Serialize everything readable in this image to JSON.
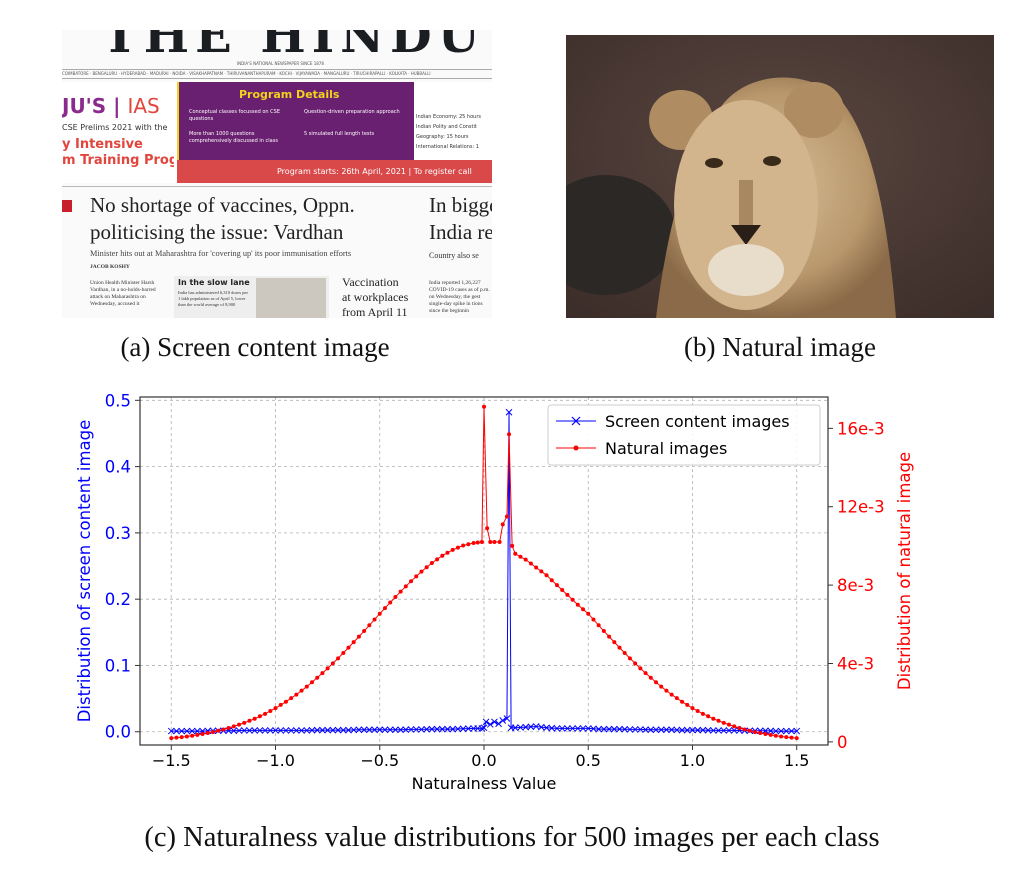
{
  "panel_a": {
    "caption": "(a) Screen content image",
    "masthead": "THE HINDU",
    "masthead_tag": "INDIA'S NATIONAL NEWSPAPER SINCE 1878",
    "cities": "COIMBATORE · BENGALURU · HYDERABAD · MADURAI · NOIDA · VISAKHAPATNAM · THIRUVANANTHAPURAM · KOCHI · VIJAYAWADA · MANGALURU · TIRUCHIRAPALLI · KOLKATA · HUBBALLI",
    "ad_brand": "JU'S",
    "ad_brand_ias": "IAS",
    "ad_sub": "CSE Prelims 2021 with the",
    "ad_intensive": "y Intensive",
    "ad_program": "m Training Program",
    "ad_title": "Program Details",
    "ad_bullets": [
      "Conceptual classes focussed on CSE questions",
      "Question-driven preparation approach",
      "More than 1000 questions comprehensively discussed in class",
      "5 simulated full length tests"
    ],
    "ad_right": [
      "Indian Economy: 25 hours",
      "Indian Polity and Constit",
      "Geography: 15 hours",
      "International Relations: 1"
    ],
    "ad_footer": "Program starts: 26th April, 2021  |  To register call",
    "headline_1": "No shortage of vaccines, Oppn.",
    "headline_2": "politicising the issue: Vardhan",
    "deck": "Minister hits out at Maharashtra for 'covering up' its poor immunisation efforts",
    "byline": "JACOB KOSHY",
    "body": "Union Health Minister Harsh Vardhan, in a no-holds-barred attack on Maharashtra on Wednesday, accused it",
    "slow_lane_title": "In the slow lane",
    "slow_lane_body": "India has administered 6,310 doses per 1 lakh population as of April 5, lower than the world average of 8,900",
    "vaccination_1": "Vaccination",
    "vaccination_2": "at workplaces",
    "vaccination_3": "from April 11",
    "side_head_1": "In bigge",
    "side_head_2": "India re",
    "side_deck": "Country also se",
    "side_body": "India reported 1,26,227 COVID-19 cases as of p.m. on Wednesday, the gest single-day spike in tions since the beginnin"
  },
  "panel_b": {
    "caption": "(b) Natural image"
  },
  "panel_c": {
    "caption": "(c) Naturalness value distributions for 500 images per each class"
  },
  "chart_data": {
    "type": "line",
    "xlabel": "Naturalness Value",
    "ylabel_left": "Distribution of screen content image",
    "ylabel_right": "Distribution of natural image",
    "xlim": [
      -1.65,
      1.65
    ],
    "ylim_left": [
      -0.02,
      0.505
    ],
    "ylim_right": [
      -0.00016,
      0.0176
    ],
    "x_ticks": [
      -1.5,
      -1.0,
      -0.5,
      0.0,
      0.5,
      1.0,
      1.5
    ],
    "x_tick_labels": [
      "−1.5",
      "−1.0",
      "−0.5",
      "0.0",
      "0.5",
      "1.0",
      "1.5"
    ],
    "y_left_ticks": [
      0.0,
      0.1,
      0.2,
      0.3,
      0.4,
      0.5
    ],
    "y_left_tick_labels": [
      "0.0",
      "0.1",
      "0.2",
      "0.3",
      "0.4",
      "0.5"
    ],
    "y_right_ticks": [
      0,
      0.004,
      0.008,
      0.012,
      0.016
    ],
    "y_right_tick_labels": [
      "0",
      "4e-3",
      "8e-3",
      "12e-3",
      "16e-3"
    ],
    "grid": true,
    "legend_position": "top-right",
    "colors": {
      "screen": "#0000ff",
      "natural": "#ff0000",
      "grid": "#b0b0b0"
    },
    "series": [
      {
        "name": "Screen content images",
        "axis": "left",
        "marker": "x",
        "x": [
          -1.5,
          -1.45,
          -1.4,
          -1.35,
          -1.3,
          -1.25,
          -1.2,
          -1.15,
          -1.1,
          -1.05,
          -1.0,
          -0.95,
          -0.9,
          -0.85,
          -0.8,
          -0.75,
          -0.7,
          -0.65,
          -0.6,
          -0.55,
          -0.5,
          -0.45,
          -0.4,
          -0.35,
          -0.3,
          -0.25,
          -0.2,
          -0.15,
          -0.1,
          -0.05,
          -0.01,
          0.0,
          0.01,
          0.03,
          0.05,
          0.07,
          0.09,
          0.11,
          0.12,
          0.13,
          0.15,
          0.2,
          0.25,
          0.3,
          0.35,
          0.4,
          0.45,
          0.5,
          0.55,
          0.6,
          0.65,
          0.7,
          0.75,
          0.8,
          0.85,
          0.9,
          0.95,
          1.0,
          1.05,
          1.1,
          1.15,
          1.2,
          1.25,
          1.3,
          1.35,
          1.4,
          1.45,
          1.5
        ],
        "y": [
          0.001,
          0.001,
          0.001,
          0.001,
          0.0015,
          0.0015,
          0.0015,
          0.002,
          0.002,
          0.002,
          0.002,
          0.002,
          0.002,
          0.002,
          0.0025,
          0.0025,
          0.0025,
          0.0025,
          0.003,
          0.003,
          0.003,
          0.003,
          0.003,
          0.0035,
          0.0035,
          0.004,
          0.004,
          0.004,
          0.0045,
          0.005,
          0.005,
          0.006,
          0.015,
          0.011,
          0.015,
          0.012,
          0.017,
          0.02,
          0.482,
          0.006,
          0.006,
          0.007,
          0.008,
          0.006,
          0.005,
          0.005,
          0.005,
          0.005,
          0.004,
          0.004,
          0.004,
          0.0035,
          0.0035,
          0.003,
          0.003,
          0.003,
          0.0025,
          0.0025,
          0.0025,
          0.002,
          0.002,
          0.002,
          0.0015,
          0.0015,
          0.0015,
          0.001,
          0.001,
          0.001
        ]
      },
      {
        "name": "Natural images",
        "axis": "right",
        "marker": "o",
        "x": [
          -1.5,
          -1.45,
          -1.4,
          -1.35,
          -1.3,
          -1.25,
          -1.2,
          -1.15,
          -1.1,
          -1.05,
          -1.0,
          -0.95,
          -0.9,
          -0.85,
          -0.8,
          -0.75,
          -0.7,
          -0.65,
          -0.6,
          -0.55,
          -0.5,
          -0.45,
          -0.4,
          -0.35,
          -0.3,
          -0.25,
          -0.2,
          -0.15,
          -0.1,
          -0.05,
          -0.01,
          0.0,
          0.015,
          0.03,
          0.05,
          0.075,
          0.09,
          0.11,
          0.12,
          0.135,
          0.15,
          0.2,
          0.25,
          0.3,
          0.35,
          0.4,
          0.45,
          0.5,
          0.55,
          0.6,
          0.65,
          0.7,
          0.75,
          0.8,
          0.85,
          0.9,
          0.95,
          1.0,
          1.05,
          1.1,
          1.15,
          1.2,
          1.25,
          1.3,
          1.35,
          1.4,
          1.45,
          1.5
        ],
        "y": [
          0.00019,
          0.00024,
          0.00031,
          0.0004,
          0.0005,
          0.00063,
          0.00079,
          0.00097,
          0.00118,
          0.00143,
          0.00172,
          0.00205,
          0.00241,
          0.00282,
          0.00327,
          0.00375,
          0.00426,
          0.00481,
          0.00537,
          0.00595,
          0.00654,
          0.00711,
          0.00767,
          0.0082,
          0.00869,
          0.00913,
          0.0095,
          0.0098,
          0.01002,
          0.01015,
          0.0102,
          0.0171,
          0.0109,
          0.0102,
          0.0102,
          0.0102,
          0.0111,
          0.0115,
          0.0157,
          0.01,
          0.0096,
          0.0093,
          0.0089,
          0.0085,
          0.008,
          0.0075,
          0.007,
          0.00654,
          0.00595,
          0.00537,
          0.00481,
          0.00426,
          0.00375,
          0.00327,
          0.00282,
          0.00241,
          0.00205,
          0.00172,
          0.00143,
          0.00118,
          0.00097,
          0.00079,
          0.00063,
          0.0005,
          0.0004,
          0.00031,
          0.00024,
          0.00019
        ]
      }
    ]
  }
}
